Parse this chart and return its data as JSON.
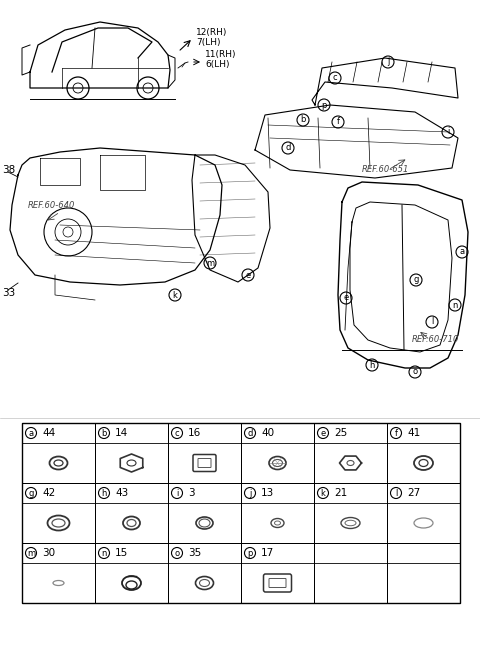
{
  "background_color": "#ffffff",
  "table": {
    "rows": [
      [
        {
          "label": "a",
          "num": "44",
          "shape": "small_ring"
        },
        {
          "label": "b",
          "num": "14",
          "shape": "hex_ring"
        },
        {
          "label": "c",
          "num": "16",
          "shape": "rect_plug"
        },
        {
          "label": "d",
          "num": "40",
          "shape": "nut"
        },
        {
          "label": "e",
          "num": "25",
          "shape": "hex_nut"
        },
        {
          "label": "f",
          "num": "41",
          "shape": "washer"
        }
      ],
      [
        {
          "label": "g",
          "num": "42",
          "shape": "oval_ring"
        },
        {
          "label": "h",
          "num": "43",
          "shape": "ring"
        },
        {
          "label": "i",
          "num": "3",
          "shape": "cap_nut"
        },
        {
          "label": "j",
          "num": "13",
          "shape": "small_cap"
        },
        {
          "label": "k",
          "num": "21",
          "shape": "oval_plug"
        },
        {
          "label": "l",
          "num": "27",
          "shape": "thin_oval"
        }
      ],
      [
        {
          "label": "m",
          "num": "30",
          "shape": "tiny_oval"
        },
        {
          "label": "n",
          "num": "15",
          "shape": "grommet"
        },
        {
          "label": "o",
          "num": "35",
          "shape": "cap"
        },
        {
          "label": "p",
          "num": "17",
          "shape": "rect_plug2"
        },
        null,
        null
      ]
    ]
  }
}
